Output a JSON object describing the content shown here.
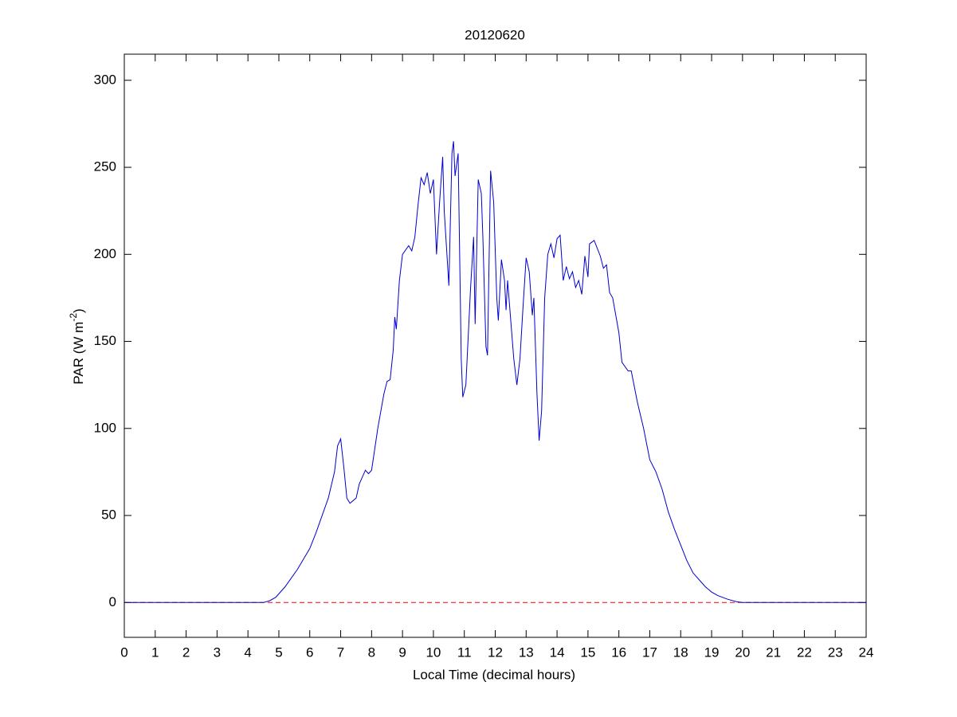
{
  "chart_data": {
    "type": "line",
    "title": "20120620",
    "x_label": "Local Time (decimal hours)",
    "y_label": "PAR (W m",
    "y_label_sup": "-2",
    "y_label_end": ")",
    "xlim": [
      0,
      24
    ],
    "ylim": [
      -20,
      315
    ],
    "xticks": [
      0,
      1,
      2,
      3,
      4,
      5,
      6,
      7,
      8,
      9,
      10,
      11,
      12,
      13,
      14,
      15,
      16,
      17,
      18,
      19,
      20,
      21,
      22,
      23,
      24
    ],
    "yticks": [
      0,
      50,
      100,
      150,
      200,
      250,
      300
    ],
    "reference_line": {
      "y": 0,
      "color": "#ff0000",
      "style": "dashed"
    },
    "series": [
      {
        "color": "#0000cc",
        "x": [
          0,
          4.5,
          4.7,
          4.9,
          5.0,
          5.2,
          5.4,
          5.6,
          5.8,
          6.0,
          6.2,
          6.4,
          6.6,
          6.8,
          6.9,
          7.0,
          7.1,
          7.2,
          7.3,
          7.5,
          7.6,
          7.8,
          7.9,
          8.0,
          8.2,
          8.4,
          8.5,
          8.6,
          8.7,
          8.75,
          8.8,
          8.9,
          9.0,
          9.2,
          9.3,
          9.4,
          9.5,
          9.6,
          9.7,
          9.8,
          9.9,
          10.0,
          10.1,
          10.2,
          10.3,
          10.35,
          10.5,
          10.6,
          10.65,
          10.7,
          10.8,
          10.9,
          10.95,
          11.05,
          11.2,
          11.3,
          11.35,
          11.45,
          11.55,
          11.6,
          11.7,
          11.75,
          11.85,
          11.95,
          12.05,
          12.1,
          12.2,
          12.3,
          12.35,
          12.4,
          12.6,
          12.7,
          12.8,
          12.9,
          13.0,
          13.1,
          13.2,
          13.25,
          13.35,
          13.42,
          13.5,
          13.6,
          13.7,
          13.8,
          13.9,
          14.0,
          14.1,
          14.2,
          14.3,
          14.4,
          14.5,
          14.6,
          14.7,
          14.8,
          14.9,
          15.0,
          15.05,
          15.2,
          15.4,
          15.5,
          15.6,
          15.7,
          15.8,
          16.0,
          16.1,
          16.3,
          16.4,
          16.6,
          16.8,
          17.0,
          17.2,
          17.4,
          17.6,
          17.8,
          18.0,
          18.2,
          18.4,
          18.6,
          18.8,
          19.0,
          19.2,
          19.5,
          19.8,
          20.0,
          24
        ],
        "values": [
          0,
          0,
          1,
          3,
          5,
          9,
          14,
          19,
          25,
          31,
          40,
          50,
          60,
          75,
          90,
          94,
          78,
          60,
          57,
          60,
          68,
          76,
          74,
          76,
          100,
          120,
          127,
          128,
          145,
          164,
          157,
          185,
          200,
          205,
          202,
          210,
          228,
          244,
          240,
          247,
          235,
          243,
          200,
          230,
          256,
          225,
          182,
          258,
          265,
          245,
          258,
          140,
          118,
          125,
          180,
          210,
          160,
          243,
          235,
          210,
          147,
          142,
          248,
          230,
          175,
          162,
          197,
          185,
          168,
          185,
          140,
          125,
          140,
          170,
          198,
          190,
          165,
          175,
          120,
          93,
          110,
          175,
          200,
          206,
          198,
          209,
          211,
          185,
          193,
          186,
          190,
          181,
          185,
          177,
          199,
          187,
          206,
          208,
          199,
          192,
          194,
          178,
          175,
          155,
          138,
          133,
          133,
          115,
          100,
          82,
          75,
          65,
          52,
          42,
          33,
          24,
          17,
          13,
          9,
          6,
          4,
          2,
          0.5,
          0,
          0
        ]
      }
    ]
  }
}
